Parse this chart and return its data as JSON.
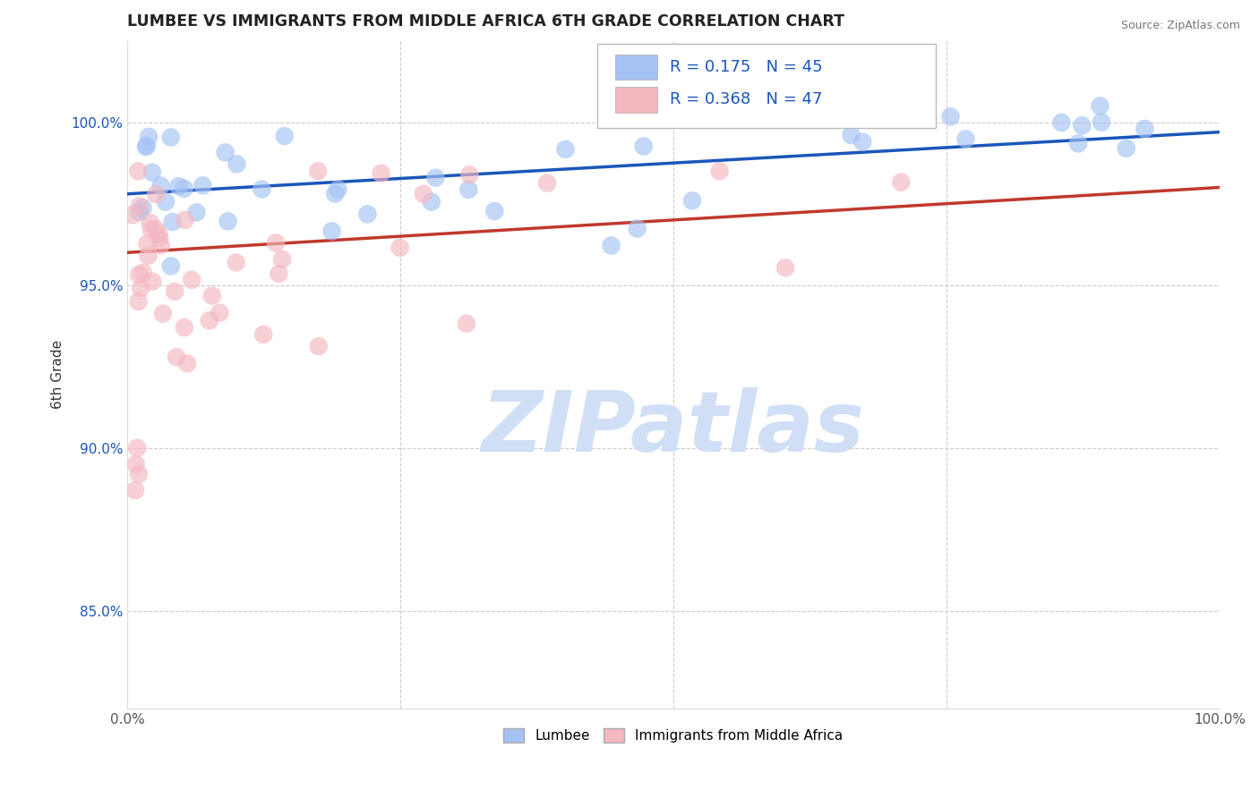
{
  "title": "LUMBEE VS IMMIGRANTS FROM MIDDLE AFRICA 6TH GRADE CORRELATION CHART",
  "source": "Source: ZipAtlas.com",
  "ylabel": "6th Grade",
  "xlim": [
    0,
    1.0
  ],
  "ylim": [
    0.82,
    1.025
  ],
  "yticks": [
    0.85,
    0.9,
    0.95,
    1.0
  ],
  "ytick_labels": [
    "85.0%",
    "90.0%",
    "95.0%",
    "100.0%"
  ],
  "xticks": [
    0.0,
    0.25,
    0.5,
    0.75,
    1.0
  ],
  "xtick_labels": [
    "0.0%",
    "",
    "",
    "",
    "100.0%"
  ],
  "blue_color": "#a4c2f4",
  "pink_color": "#f4b8c1",
  "blue_line_color": "#1a56bb",
  "pink_line_color": "#c0392b",
  "R_blue": 0.175,
  "N_blue": 45,
  "R_pink": 0.368,
  "N_pink": 47,
  "blue_line_start_y": 0.978,
  "blue_line_end_y": 0.997,
  "pink_line_start_y": 0.96,
  "pink_line_end_y": 0.98,
  "watermark_text": "ZIPatlas",
  "watermark_color": "#d0dff5",
  "legend_label_blue": "Lumbee",
  "legend_label_pink": "Immigrants from Middle Africa"
}
